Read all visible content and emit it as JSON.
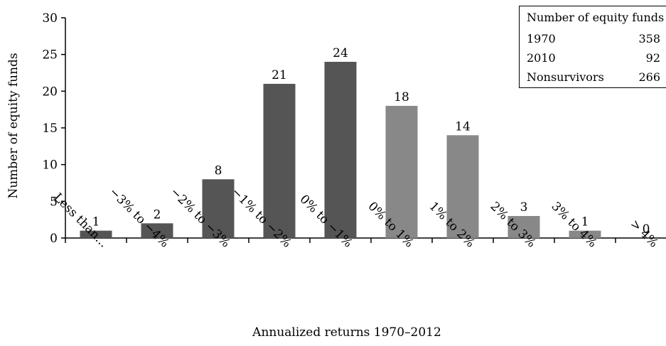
{
  "chart_data": {
    "type": "bar",
    "categories": [
      "Less than...",
      "−3% to −4%",
      "−2% to −3%",
      "−1% to −2%",
      "0% to −1%",
      "0% to 1%",
      "1% to 2%",
      "2% to 3%",
      "3% to 4%",
      "> 4%"
    ],
    "values": [
      1,
      2,
      8,
      21,
      24,
      18,
      14,
      3,
      1,
      0
    ],
    "bar_colors": [
      "#555555",
      "#555555",
      "#555555",
      "#555555",
      "#555555",
      "#888888",
      "#888888",
      "#888888",
      "#888888",
      "#888888"
    ],
    "ylabel": "Number of equity funds",
    "xlabel": "Annualized returns 1970–2012",
    "ylim": [
      0,
      30
    ],
    "yticks": [
      0,
      5,
      10,
      15,
      20,
      25,
      30
    ],
    "grid": false
  },
  "legend_table": {
    "title": "Number of equity funds",
    "rows": [
      {
        "label": "1970",
        "value": "358"
      },
      {
        "label": "2010",
        "value": "92"
      },
      {
        "label": "Nonsurvivors",
        "value": "266"
      }
    ]
  }
}
